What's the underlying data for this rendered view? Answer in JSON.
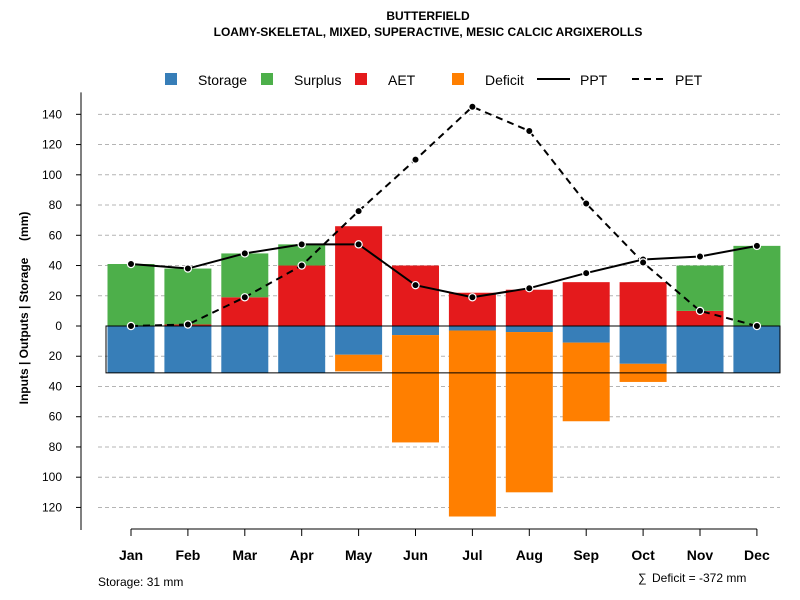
{
  "chart_data": {
    "type": "bar",
    "title": "BUTTERFIELD",
    "subtitle": "LOAMY-SKELETAL, MIXED, SUPERACTIVE, MESIC CALCIC ARGIXEROLLS",
    "ylabel": "Inputs | Outputs | Storage     (mm)",
    "ylim": [
      -128,
      150
    ],
    "yticks": [
      140,
      120,
      100,
      80,
      60,
      40,
      20,
      0,
      -20,
      -40,
      -60,
      -80,
      -100,
      -120
    ],
    "ytick_labels": [
      "140",
      "120",
      "100",
      "80",
      "60",
      "40",
      "20",
      "0",
      "20",
      "40",
      "60",
      "80",
      "100",
      "120"
    ],
    "grid": "dashed horizontal",
    "legend_position": "top",
    "categories": [
      "Jan",
      "Feb",
      "Mar",
      "Apr",
      "May",
      "Jun",
      "Jul",
      "Aug",
      "Sep",
      "Oct",
      "Nov",
      "Dec"
    ],
    "bars_above": [
      {
        "name": "AET",
        "color": "#E41A1C",
        "values": [
          0,
          1,
          19,
          40,
          66,
          40,
          22,
          24,
          29,
          29,
          10,
          0
        ]
      },
      {
        "name": "Surplus",
        "color": "#4DAF4A",
        "values": [
          41,
          37,
          29,
          14,
          0,
          0,
          0,
          0,
          0,
          0,
          30,
          53
        ]
      }
    ],
    "bars_below": [
      {
        "name": "Storage",
        "color": "#377EB8",
        "values": [
          31,
          31,
          31,
          31,
          19,
          6,
          3,
          4,
          11,
          25,
          31,
          31
        ]
      },
      {
        "name": "Deficit",
        "color": "#FF7F00",
        "values": [
          0,
          0,
          0,
          0,
          11,
          71,
          123,
          106,
          52,
          12,
          0,
          0
        ]
      }
    ],
    "series": [
      {
        "name": "PPT",
        "style": "solid",
        "values": [
          41,
          38,
          48,
          54,
          54,
          27,
          19,
          25,
          35,
          44,
          46,
          53
        ]
      },
      {
        "name": "PET",
        "style": "dashed",
        "values": [
          0,
          1,
          19,
          40,
          76,
          110,
          145,
          129,
          81,
          42,
          10,
          0
        ]
      }
    ],
    "storage_capacity": 31,
    "legend": [
      {
        "label": "Storage",
        "kind": "box",
        "color": "#377EB8"
      },
      {
        "label": "Surplus",
        "kind": "box",
        "color": "#4DAF4A"
      },
      {
        "label": "AET",
        "kind": "box",
        "color": "#E41A1C"
      },
      {
        "label": "Deficit",
        "kind": "box",
        "color": "#FF7F00"
      },
      {
        "label": "PPT",
        "kind": "line",
        "dash": "solid"
      },
      {
        "label": "PET",
        "kind": "line",
        "dash": "dashed"
      }
    ],
    "footer_left": "Storage: 31 mm",
    "footer_right_symbol": "∑",
    "footer_right": "Deficit = -372 mm"
  }
}
